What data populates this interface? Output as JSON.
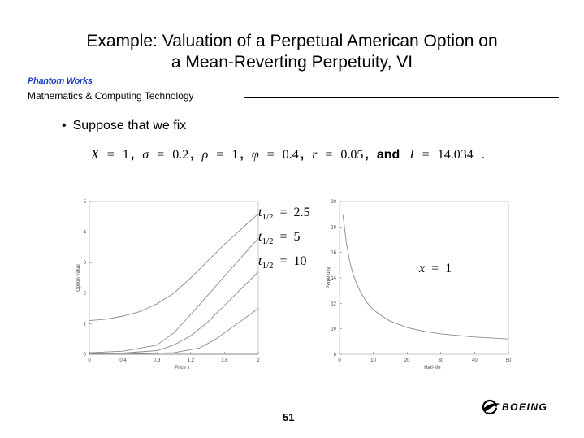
{
  "slide": {
    "title_line1": "Example:  Valuation of a Perpetual American Option on",
    "title_line2": "a Mean-Reverting Perpetuity, VI",
    "brand": "Phantom Works",
    "department": "Mathematics & Computing Technology",
    "bullet": "Suppose that we fix",
    "page_number": "51",
    "logo_text": "BOEING"
  },
  "params": [
    {
      "sym": "X",
      "val": "1"
    },
    {
      "sym": "σ",
      "val": "0.2"
    },
    {
      "sym": "ρ",
      "val": "1"
    },
    {
      "sym": "φ",
      "val": "0.4"
    },
    {
      "sym": "r",
      "val": "0.05"
    },
    {
      "sym": "I",
      "val": "14.034"
    }
  ],
  "param_labels": {
    "eq": "=",
    "comma": ",",
    "and": "and",
    "period": "."
  },
  "annotations": {
    "t_sym": "t",
    "t_sub": "1/2",
    "halflives": [
      "2.5",
      "5",
      "10"
    ],
    "x_sym": "x",
    "x_val": "1"
  },
  "chart_data": [
    {
      "type": "line",
      "xlabel": "Price x",
      "ylabel": "Option value",
      "xlim": [
        0,
        2
      ],
      "ylim": [
        0,
        5
      ],
      "x_ticks": [
        "0",
        "0.4",
        "0.8",
        "1.2",
        "1.6",
        "2"
      ],
      "y_ticks": [
        "0",
        "1",
        "2",
        "3",
        "4",
        "5"
      ],
      "series": [
        {
          "x": [
            0,
            0.2,
            0.4,
            0.6,
            0.8,
            1.0,
            1.2,
            1.4,
            1.6,
            2.0
          ],
          "values": [
            1.1,
            1.15,
            1.25,
            1.4,
            1.65,
            2.0,
            2.5,
            3.05,
            3.6,
            4.6
          ]
        },
        {
          "x": [
            0,
            0.4,
            0.8,
            1.0,
            1.2,
            1.6,
            2.0
          ],
          "values": [
            0.05,
            0.1,
            0.3,
            0.7,
            1.3,
            2.55,
            3.8
          ]
        },
        {
          "x": [
            0,
            0.4,
            0.8,
            1.0,
            1.2,
            1.4,
            1.6,
            2.0
          ],
          "values": [
            0.02,
            0.04,
            0.12,
            0.3,
            0.6,
            1.05,
            1.6,
            2.7
          ]
        },
        {
          "x": [
            0,
            0.5,
            1.0,
            1.3,
            1.5,
            2.0
          ],
          "values": [
            0,
            0.01,
            0.05,
            0.2,
            0.5,
            1.5
          ]
        },
        {
          "x": [
            0,
            0.8,
            1.2,
            1.6,
            2.0
          ],
          "values": [
            0,
            0,
            0,
            0,
            0
          ]
        }
      ]
    },
    {
      "type": "line",
      "xlabel": "Half-life",
      "ylabel": "Perpetuity",
      "xlim": [
        0,
        50
      ],
      "ylim": [
        8,
        20
      ],
      "x_ticks": [
        "0",
        "10",
        "20",
        "30",
        "40",
        "50"
      ],
      "y_ticks": [
        "8",
        "10",
        "12",
        "14",
        "16",
        "18",
        "20"
      ],
      "series": [
        {
          "x": [
            1,
            2,
            3,
            4,
            5,
            6,
            8,
            10,
            12,
            15,
            20,
            25,
            30,
            40,
            50
          ],
          "values": [
            19.0,
            16.8,
            15.3,
            14.3,
            13.6,
            13.0,
            12.1,
            11.5,
            11.1,
            10.6,
            10.1,
            9.8,
            9.6,
            9.35,
            9.2
          ]
        }
      ]
    }
  ]
}
